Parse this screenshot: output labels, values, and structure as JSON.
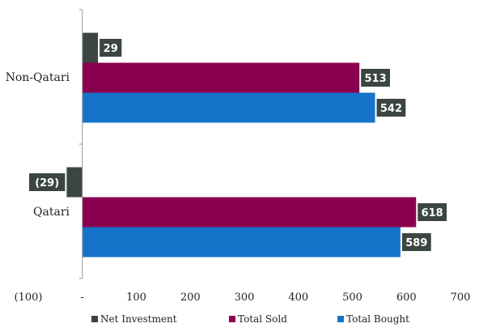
{
  "chart_data": {
    "type": "bar",
    "orientation": "horizontal",
    "categories": [
      "Non-Qatari",
      "Qatari"
    ],
    "series": [
      {
        "name": "Net Investment",
        "color": "#3b4542",
        "values": [
          29,
          -29
        ],
        "labels": [
          "29",
          "(29)"
        ]
      },
      {
        "name": "Total Sold",
        "color": "#8b004e",
        "values": [
          513,
          618
        ],
        "labels": [
          "513",
          "618"
        ]
      },
      {
        "name": "Total Bought",
        "color": "#1574c9",
        "values": [
          542,
          589
        ],
        "labels": [
          "542",
          "589"
        ]
      }
    ],
    "xlim": [
      -100,
      700
    ],
    "xticks": [
      -100,
      0,
      100,
      200,
      300,
      400,
      500,
      600,
      700
    ],
    "xtick_labels": [
      "(100)",
      "-",
      "100",
      "200",
      "300",
      "400",
      "500",
      "600",
      "700"
    ],
    "xlabel": "",
    "ylabel": "",
    "title": "",
    "grid": false,
    "legend_position": "bottom",
    "label_box_color": "#3b4542"
  }
}
